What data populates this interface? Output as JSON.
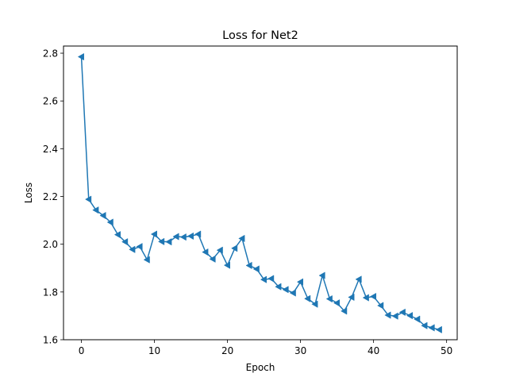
{
  "chart_data": {
    "type": "line",
    "title": "Loss for Net2",
    "xlabel": "Epoch",
    "ylabel": "Loss",
    "xlim": [
      -2.45,
      51.45
    ],
    "ylim": [
      1.6,
      2.83
    ],
    "xticks": [
      0,
      10,
      20,
      30,
      40,
      50
    ],
    "yticks": [
      1.6,
      1.8,
      2.0,
      2.2,
      2.4,
      2.6,
      2.8
    ],
    "ytick_labels": [
      "1.6",
      "1.8",
      "2.0",
      "2.2",
      "2.4",
      "2.6",
      "2.8"
    ],
    "grid": false,
    "marker": "triangle-left",
    "color": "#1f77b4",
    "series": [
      {
        "x": [
          0,
          1,
          2,
          3,
          4,
          5,
          6,
          7,
          8,
          9,
          10,
          11,
          12,
          13,
          14,
          15,
          16,
          17,
          18,
          19,
          20,
          21,
          22,
          23,
          24,
          25,
          26,
          27,
          28,
          29,
          30,
          31,
          32,
          33,
          34,
          35,
          36,
          37,
          38,
          39,
          40,
          41,
          42,
          43,
          44,
          45,
          46,
          47,
          48,
          49
        ],
        "values": [
          2.785,
          2.188,
          2.143,
          2.12,
          2.092,
          2.04,
          2.01,
          1.978,
          1.99,
          1.935,
          2.042,
          2.011,
          2.01,
          2.032,
          2.03,
          2.034,
          2.042,
          1.967,
          1.938,
          1.975,
          1.912,
          1.983,
          2.024,
          1.911,
          1.896,
          1.852,
          1.856,
          1.822,
          1.81,
          1.796,
          1.842,
          1.772,
          1.749,
          1.869,
          1.771,
          1.754,
          1.72,
          1.778,
          1.853,
          1.776,
          1.781,
          1.743,
          1.703,
          1.699,
          1.715,
          1.701,
          1.686,
          1.659,
          1.65,
          1.642
        ]
      }
    ]
  }
}
